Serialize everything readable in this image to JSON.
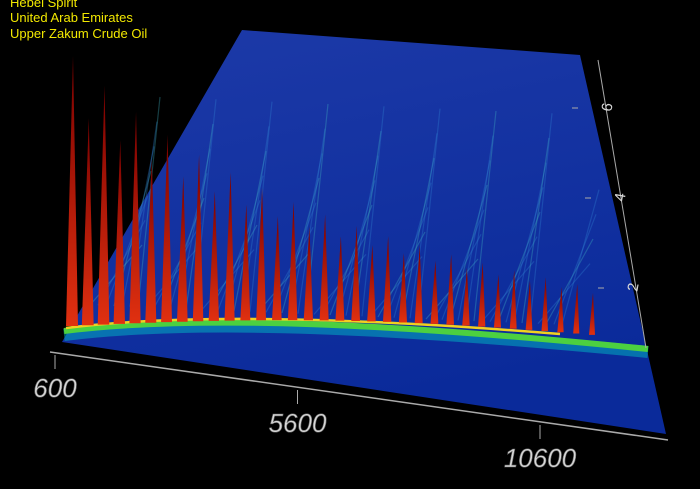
{
  "header": {
    "lines": [
      "Hebel Spirit",
      "United Arab Emirates",
      "Upper Zakum Crude Oil"
    ]
  },
  "axes": {
    "x": {
      "ticks": [
        600,
        5600,
        10600
      ]
    },
    "y": {
      "ticks": [
        2,
        4,
        6
      ]
    }
  }
}
